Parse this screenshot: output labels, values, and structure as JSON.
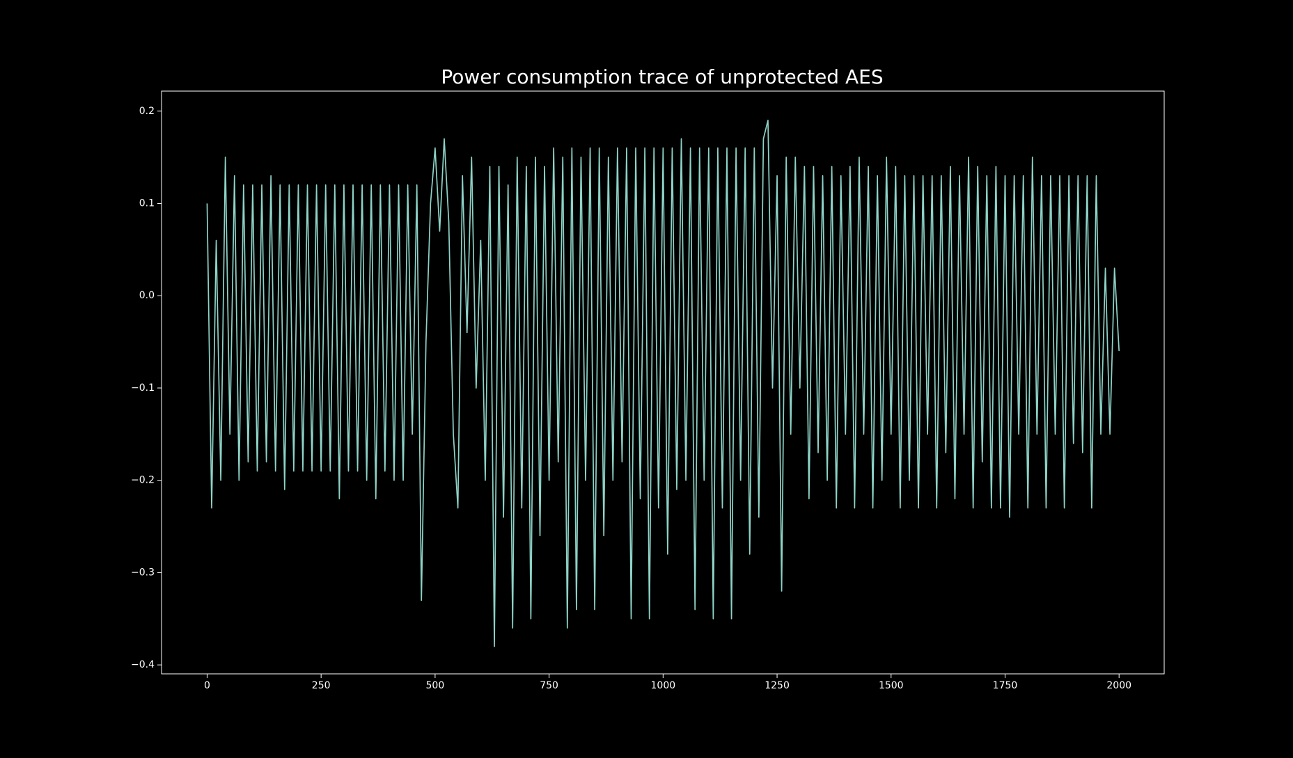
{
  "chart_data": {
    "type": "line",
    "title": "Power consumption trace of unprotected AES",
    "color": "#8dd3c7",
    "x": [
      0,
      10,
      20,
      30,
      40,
      50,
      60,
      70,
      80,
      90,
      100,
      110,
      120,
      130,
      140,
      150,
      160,
      170,
      180,
      190,
      200,
      210,
      220,
      230,
      240,
      250,
      260,
      270,
      280,
      290,
      300,
      310,
      320,
      330,
      340,
      350,
      360,
      370,
      380,
      390,
      400,
      410,
      420,
      430,
      440,
      450,
      460,
      470,
      480,
      490,
      500,
      510,
      520,
      530,
      540,
      550,
      560,
      570,
      580,
      590,
      600,
      610,
      620,
      630,
      640,
      650,
      660,
      670,
      680,
      690,
      700,
      710,
      720,
      730,
      740,
      750,
      760,
      770,
      780,
      790,
      800,
      810,
      820,
      830,
      840,
      850,
      860,
      870,
      880,
      890,
      900,
      910,
      920,
      930,
      940,
      950,
      960,
      970,
      980,
      990,
      1000,
      1010,
      1020,
      1030,
      1040,
      1050,
      1060,
      1070,
      1080,
      1090,
      1100,
      1110,
      1120,
      1130,
      1140,
      1150,
      1160,
      1170,
      1180,
      1190,
      1200,
      1210,
      1220,
      1230,
      1240,
      1250,
      1260,
      1270,
      1280,
      1290,
      1300,
      1310,
      1320,
      1330,
      1340,
      1350,
      1360,
      1370,
      1380,
      1390,
      1400,
      1410,
      1420,
      1430,
      1440,
      1450,
      1460,
      1470,
      1480,
      1490,
      1500,
      1510,
      1520,
      1530,
      1540,
      1550,
      1560,
      1570,
      1580,
      1590,
      1600,
      1610,
      1620,
      1630,
      1640,
      1650,
      1660,
      1670,
      1680,
      1690,
      1700,
      1710,
      1720,
      1730,
      1740,
      1750,
      1760,
      1770,
      1780,
      1790,
      1800,
      1810,
      1820,
      1830,
      1840,
      1850,
      1860,
      1870,
      1880,
      1890,
      1900,
      1910,
      1920,
      1930,
      1940,
      1950,
      1960,
      1970,
      1980,
      1990,
      2000
    ],
    "values": [
      0.1,
      -0.23,
      0.06,
      -0.2,
      0.15,
      -0.15,
      0.13,
      -0.2,
      0.12,
      -0.18,
      0.12,
      -0.19,
      0.12,
      -0.18,
      0.13,
      -0.19,
      0.12,
      -0.21,
      0.12,
      -0.19,
      0.12,
      -0.19,
      0.12,
      -0.19,
      0.12,
      -0.19,
      0.12,
      -0.19,
      0.12,
      -0.22,
      0.12,
      -0.19,
      0.12,
      -0.19,
      0.12,
      -0.2,
      0.12,
      -0.22,
      0.12,
      -0.19,
      0.12,
      -0.2,
      0.12,
      -0.2,
      0.12,
      -0.15,
      0.12,
      -0.33,
      -0.05,
      0.1,
      0.16,
      0.07,
      0.17,
      0.08,
      -0.15,
      -0.23,
      0.13,
      -0.04,
      0.15,
      -0.1,
      0.06,
      -0.2,
      0.14,
      -0.38,
      0.14,
      -0.24,
      0.12,
      -0.36,
      0.15,
      -0.23,
      0.14,
      -0.35,
      0.15,
      -0.26,
      0.14,
      -0.2,
      0.16,
      -0.18,
      0.15,
      -0.36,
      0.16,
      -0.34,
      0.15,
      -0.2,
      0.16,
      -0.34,
      0.16,
      -0.26,
      0.15,
      -0.2,
      0.16,
      -0.18,
      0.16,
      -0.35,
      0.16,
      -0.22,
      0.16,
      -0.35,
      0.16,
      -0.23,
      0.16,
      -0.28,
      0.16,
      -0.21,
      0.17,
      -0.2,
      0.16,
      -0.34,
      0.16,
      -0.2,
      0.16,
      -0.35,
      0.16,
      -0.23,
      0.16,
      -0.35,
      0.16,
      -0.2,
      0.16,
      -0.28,
      0.16,
      -0.24,
      0.17,
      0.19,
      -0.1,
      0.13,
      -0.32,
      0.15,
      -0.15,
      0.15,
      -0.1,
      0.14,
      -0.22,
      0.14,
      -0.17,
      0.13,
      -0.2,
      0.14,
      -0.23,
      0.13,
      -0.15,
      0.14,
      -0.23,
      0.15,
      -0.15,
      0.14,
      -0.23,
      0.13,
      -0.2,
      0.15,
      -0.15,
      0.14,
      -0.23,
      0.13,
      -0.2,
      0.13,
      -0.23,
      0.13,
      -0.15,
      0.13,
      -0.23,
      0.13,
      -0.17,
      0.14,
      -0.22,
      0.13,
      -0.15,
      0.15,
      -0.23,
      0.14,
      -0.18,
      0.13,
      -0.23,
      0.14,
      -0.23,
      0.13,
      -0.24,
      0.13,
      -0.15,
      0.13,
      -0.23,
      0.15,
      -0.15,
      0.13,
      -0.23,
      0.13,
      -0.15,
      0.13,
      -0.23,
      0.13,
      -0.16,
      0.13,
      -0.17,
      0.13,
      -0.23,
      0.13,
      -0.15,
      0.03,
      -0.15,
      0.03,
      -0.06
    ],
    "xlim": [
      -99.95,
      2098.95
    ],
    "ylim": [
      -0.4097,
      0.2217
    ],
    "xticks": [
      0,
      250,
      500,
      750,
      1000,
      1250,
      1500,
      1750,
      2000
    ],
    "yticks": [
      {
        "value": -0.4,
        "label": "−0.4"
      },
      {
        "value": -0.3,
        "label": "−0.3"
      },
      {
        "value": -0.2,
        "label": "−0.2"
      },
      {
        "value": -0.1,
        "label": "−0.1"
      },
      {
        "value": 0,
        "label": "0.0"
      },
      0.1,
      0.2
    ]
  }
}
